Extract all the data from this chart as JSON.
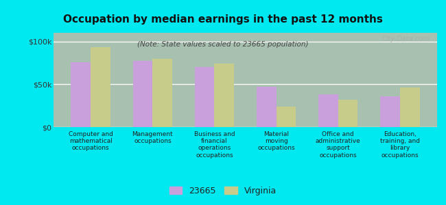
{
  "title": "Occupation by median earnings in the past 12 months",
  "subtitle": "(Note: State values scaled to 23665 population)",
  "background_color": "#00e8f0",
  "plot_bg_top": "#c8ddb0",
  "plot_bg_bottom": "#eef5e8",
  "categories": [
    "Computer and\nmathematical\noccupations",
    "Management\noccupations",
    "Business and\nfinancial\noperations\noccupations",
    "Material\nmoving\noccupations",
    "Office and\nadministrative\nsupport\noccupations",
    "Education,\ntraining, and\nlibrary\noccupations"
  ],
  "values_23665": [
    76000,
    77000,
    70000,
    47000,
    38000,
    36000
  ],
  "values_virginia": [
    93000,
    80000,
    74000,
    24000,
    32000,
    46000
  ],
  "color_23665": "#c9a0dc",
  "color_virginia": "#c8cc8a",
  "ylim": [
    0,
    110000
  ],
  "ytick_labels": [
    "$0",
    "$50k",
    "$100k"
  ],
  "ytick_vals": [
    0,
    50000,
    100000
  ],
  "legend_label_23665": "23665",
  "legend_label_virginia": "Virginia",
  "watermark": "City-Data.com",
  "bar_width": 0.32
}
